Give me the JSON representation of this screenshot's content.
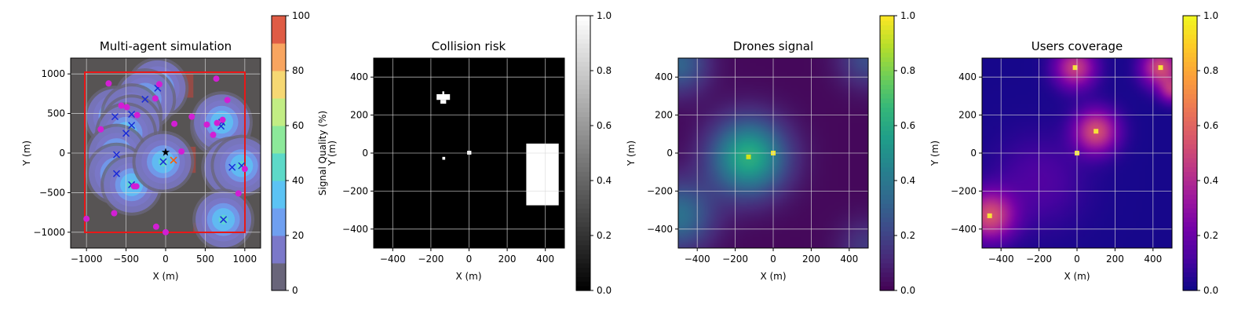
{
  "chart_data": [
    {
      "type": "scatter",
      "title": "Multi-agent simulation",
      "xlabel": "X (m)",
      "ylabel": "Y (m)",
      "xlim": [
        -1200,
        1200
      ],
      "ylim": [
        -1200,
        1200
      ],
      "xticks": [
        -1000,
        -500,
        0,
        500,
        1000
      ],
      "yticks": [
        -1000,
        -500,
        0,
        500,
        1000
      ],
      "xtick_labels": [
        "−1000",
        "−500",
        "0",
        "500",
        "1000"
      ],
      "ytick_labels": [
        "−1000",
        "−500",
        "0",
        "500",
        "1000"
      ],
      "grid": true,
      "boundary": [
        -1000,
        1000,
        -1000,
        1000
      ],
      "colorbar": {
        "label": "Signal Quality (%)",
        "range": [
          0,
          100
        ],
        "ticks": [
          0,
          20,
          40,
          60,
          80,
          100
        ],
        "tick_labels": [
          "0",
          "20",
          "40",
          "60",
          "80",
          "100"
        ],
        "levels": 10,
        "colors": [
          "#69657a",
          "#7b78c9",
          "#6f9ff0",
          "#5cc3f4",
          "#5dd9c8",
          "#8ce89a",
          "#c2ed84",
          "#f6d873",
          "#f8a560",
          "#df5c45"
        ]
      },
      "series": [
        {
          "name": "drones",
          "marker": "x",
          "color": "#1a2cd8",
          "points": [
            [
              -100,
              820
            ],
            [
              -260,
              680
            ],
            [
              -640,
              460
            ],
            [
              -430,
              490
            ],
            [
              -430,
              350
            ],
            [
              -500,
              250
            ],
            [
              -620,
              -20
            ],
            [
              -620,
              -260
            ],
            [
              -430,
              -400
            ],
            [
              -30,
              -110
            ],
            [
              700,
              340
            ],
            [
              710,
              390
            ],
            [
              840,
              -180
            ],
            [
              960,
              -160
            ],
            [
              730,
              -840
            ]
          ]
        },
        {
          "name": "users",
          "marker": "o",
          "color": "#d21ed4",
          "points": [
            [
              -720,
              880
            ],
            [
              -560,
              600
            ],
            [
              -490,
              580
            ],
            [
              -820,
              300
            ],
            [
              -360,
              480
            ],
            [
              -80,
              870
            ],
            [
              -130,
              690
            ],
            [
              330,
              460
            ],
            [
              640,
              940
            ],
            [
              720,
              420
            ],
            [
              780,
              670
            ],
            [
              650,
              380
            ],
            [
              520,
              360
            ],
            [
              600,
              230
            ],
            [
              110,
              370
            ],
            [
              200,
              20
            ],
            [
              -400,
              -420
            ],
            [
              -370,
              -420
            ],
            [
              -1000,
              -830
            ],
            [
              -120,
              -930
            ],
            [
              0,
              -1000
            ],
            [
              -650,
              -760
            ],
            [
              1000,
              -200
            ],
            [
              920,
              -510
            ]
          ]
        },
        {
          "name": "base",
          "marker": "star",
          "color": "#000000",
          "points": [
            [
              0,
              10
            ]
          ]
        },
        {
          "name": "target",
          "marker": "x",
          "color": "#ff5a00",
          "points": [
            [
              100,
              -90
            ]
          ]
        }
      ],
      "coverage_centers": [
        [
          -100,
          820
        ],
        [
          -260,
          680
        ],
        [
          -640,
          460
        ],
        [
          -430,
          490
        ],
        [
          -430,
          350
        ],
        [
          -500,
          250
        ],
        [
          -620,
          -20
        ],
        [
          -620,
          -260
        ],
        [
          -430,
          -400
        ],
        [
          -30,
          -110
        ],
        [
          700,
          340
        ],
        [
          710,
          390
        ],
        [
          840,
          -180
        ],
        [
          960,
          -160
        ],
        [
          730,
          -840
        ]
      ],
      "coverage_peak": 45,
      "coverage_decay_m": 190,
      "obstacles": [
        [
          0,
          350,
          700,
          1000
        ],
        [
          50,
          200,
          700,
          850
        ],
        [
          250,
          380,
          -250,
          80
        ],
        [
          350,
          450,
          -1000,
          -880
        ],
        [
          -620,
          -480,
          -420,
          -300
        ]
      ]
    },
    {
      "type": "heatmap",
      "title": "Collision risk",
      "xlabel": "X (m)",
      "ylabel": "Y (m)",
      "xlim": [
        -500,
        500
      ],
      "ylim": [
        -500,
        500
      ],
      "xticks": [
        -400,
        -200,
        0,
        200,
        400
      ],
      "yticks": [
        -400,
        -200,
        0,
        200,
        400
      ],
      "xtick_labels": [
        "−400",
        "−200",
        "0",
        "200",
        "400"
      ],
      "ytick_labels": [
        "−400",
        "−200",
        "0",
        "200",
        "400"
      ],
      "grid": true,
      "colormap": "gray",
      "colorbar": {
        "range": [
          0,
          1
        ],
        "ticks": [
          0,
          0.2,
          0.4,
          0.6,
          0.8,
          1
        ],
        "tick_labels": [
          "0.0",
          "0.2",
          "0.4",
          "0.6",
          "0.8",
          "1.0"
        ]
      },
      "cells": [
        {
          "x": [
            -170,
            -100
          ],
          "y": [
            280,
            310
          ],
          "value": 1
        },
        {
          "x": [
            -150,
            -120
          ],
          "y": [
            260,
            280
          ],
          "value": 1
        },
        {
          "x": [
            -140,
            -130
          ],
          "y": [
            310,
            325
          ],
          "value": 1
        },
        {
          "x": [
            -140,
            -125
          ],
          "y": [
            -35,
            -20
          ],
          "value": 1
        },
        {
          "x": [
            -10,
            12
          ],
          "y": [
            -8,
            12
          ],
          "value": 1
        },
        {
          "x": [
            300,
            470
          ],
          "y": [
            -275,
            50
          ],
          "value": 1
        }
      ]
    },
    {
      "type": "heatmap",
      "title": "Drones signal",
      "xlabel": "X (m)",
      "ylabel": "Y (m)",
      "xlim": [
        -500,
        500
      ],
      "ylim": [
        -500,
        500
      ],
      "xticks": [
        -400,
        -200,
        0,
        200,
        400
      ],
      "yticks": [
        -400,
        -200,
        0,
        200,
        400
      ],
      "xtick_labels": [
        "−400",
        "−200",
        "0",
        "200",
        "400"
      ],
      "ytick_labels": [
        "−400",
        "−200",
        "0",
        "200",
        "400"
      ],
      "grid": true,
      "colormap": "viridis",
      "colorbar": {
        "range": [
          0,
          1
        ],
        "ticks": [
          0,
          0.2,
          0.4,
          0.6,
          0.8,
          1
        ],
        "tick_labels": [
          "0.0",
          "0.2",
          "0.4",
          "0.6",
          "0.8",
          "1.0"
        ]
      },
      "sources": [
        {
          "x": -130,
          "y": -20,
          "peak": 0.6,
          "spread_m": 140
        },
        {
          "x": -500,
          "y": -330,
          "peak": 0.35,
          "spread_m": 130
        },
        {
          "x": -500,
          "y": 470,
          "peak": 0.3,
          "spread_m": 110
        },
        {
          "x": 500,
          "y": 500,
          "peak": 0.22,
          "spread_m": 110
        },
        {
          "x": 500,
          "y": -500,
          "peak": 0.15,
          "spread_m": 110
        }
      ],
      "markers": [
        {
          "name": "base",
          "x": 0,
          "y": 0,
          "color": "#f2e620"
        },
        {
          "name": "drone",
          "x": -130,
          "y": -20,
          "color": "#d6e21a"
        }
      ]
    },
    {
      "type": "heatmap",
      "title": "Users coverage",
      "xlabel": "X (m)",
      "ylabel": "Y (m)",
      "xlim": [
        -500,
        500
      ],
      "ylim": [
        -500,
        500
      ],
      "xticks": [
        -400,
        -200,
        0,
        200,
        400
      ],
      "yticks": [
        -400,
        -200,
        0,
        200,
        400
      ],
      "xtick_labels": [
        "−400",
        "−200",
        "0",
        "200",
        "400"
      ],
      "ytick_labels": [
        "−400",
        "−200",
        "0",
        "200",
        "400"
      ],
      "grid": true,
      "colormap": "plasma",
      "colorbar": {
        "range": [
          0,
          1
        ],
        "ticks": [
          0,
          0.2,
          0.4,
          0.6,
          0.8,
          1
        ],
        "tick_labels": [
          "0.0",
          "0.2",
          "0.4",
          "0.6",
          "0.8",
          "1.0"
        ]
      },
      "sources": [
        {
          "x": -10,
          "y": 450,
          "peak": 0.45,
          "spread_m": 75
        },
        {
          "x": 440,
          "y": 450,
          "peak": 0.5,
          "spread_m": 70
        },
        {
          "x": 100,
          "y": 115,
          "peak": 0.5,
          "spread_m": 80
        },
        {
          "x": -460,
          "y": -330,
          "peak": 0.5,
          "spread_m": 90
        },
        {
          "x": 500,
          "y": 330,
          "peak": 0.35,
          "spread_m": 45
        },
        {
          "x": -200,
          "y": -150,
          "peak": 0.12,
          "spread_m": 170
        }
      ],
      "markers": [
        {
          "name": "user",
          "x": -10,
          "y": 450,
          "color": "#f7e23a"
        },
        {
          "name": "user",
          "x": 440,
          "y": 450,
          "color": "#f7e23a"
        },
        {
          "name": "user",
          "x": 100,
          "y": 115,
          "color": "#f7e23a"
        },
        {
          "name": "user",
          "x": -460,
          "y": -330,
          "color": "#f7e23a"
        },
        {
          "name": "base",
          "x": 0,
          "y": 0,
          "color": "#f7e23a"
        }
      ]
    }
  ]
}
